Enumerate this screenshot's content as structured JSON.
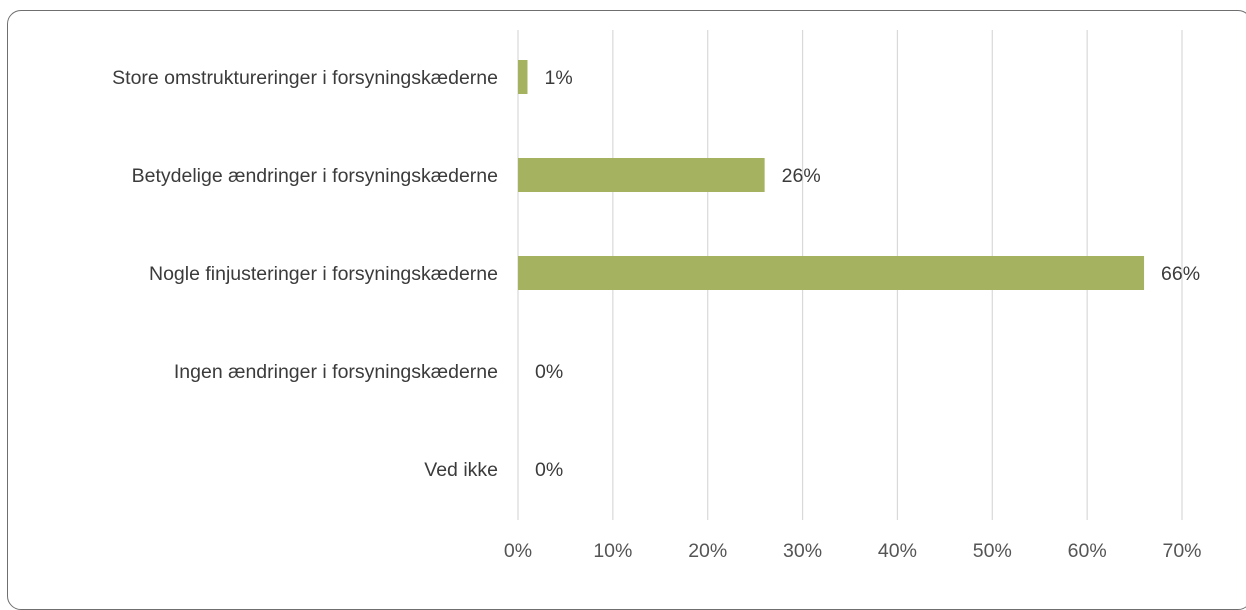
{
  "chart_data": {
    "type": "bar",
    "orientation": "horizontal",
    "categories": [
      "Store omstruktureringer i forsyningskæderne",
      "Betydelige ændringer i forsyningskæderne",
      "Nogle finjusteringer i forsyningskæderne",
      "Ingen ændringer i forsyningskæderne",
      "Ved ikke"
    ],
    "values": [
      1,
      26,
      66,
      0,
      0
    ],
    "data_labels": [
      "1%",
      "26%",
      "66%",
      "0%",
      "0%"
    ],
    "xlim": [
      0,
      70
    ],
    "x_ticks": [
      0,
      10,
      20,
      30,
      40,
      50,
      60,
      70
    ],
    "x_tick_labels": [
      "0%",
      "10%",
      "20%",
      "30%",
      "40%",
      "50%",
      "60%",
      "70%"
    ],
    "grid": true,
    "legend": "none",
    "bar_color": "#a5b25f",
    "title": "",
    "xlabel": "",
    "ylabel": ""
  }
}
